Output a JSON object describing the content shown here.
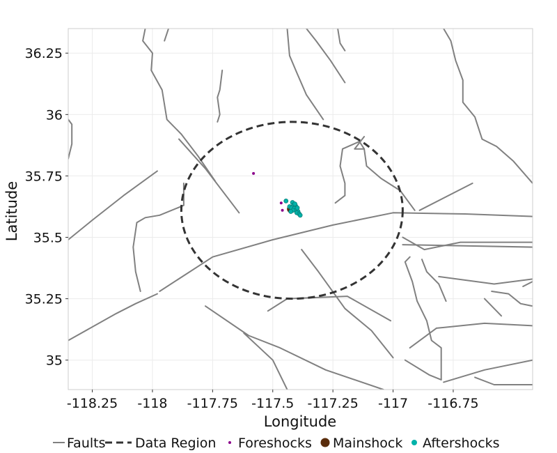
{
  "chart_data": {
    "type": "scatter",
    "xlabel": "Longitude",
    "ylabel": "Latitude",
    "xlim": [
      -118.35,
      -116.42
    ],
    "ylim": [
      34.88,
      36.35
    ],
    "x_ticks": [
      {
        "value": -118.25,
        "label": "-118.25"
      },
      {
        "value": -118.0,
        "label": "-118"
      },
      {
        "value": -117.75,
        "label": "-117.75"
      },
      {
        "value": -117.5,
        "label": "-117.5"
      },
      {
        "value": -117.25,
        "label": "-117.25"
      },
      {
        "value": -117.0,
        "label": "-117"
      },
      {
        "value": -116.75,
        "label": "-116.75"
      }
    ],
    "y_ticks": [
      {
        "value": 35.0,
        "label": "35"
      },
      {
        "value": 35.25,
        "label": "35.25"
      },
      {
        "value": 35.5,
        "label": "35.5"
      },
      {
        "value": 35.75,
        "label": "35.75"
      },
      {
        "value": 36.0,
        "label": "36"
      },
      {
        "value": 36.25,
        "label": "36.25"
      }
    ],
    "grid": true,
    "legend_position": "bottom",
    "legend": [
      {
        "key": "faults",
        "label": "Faults"
      },
      {
        "key": "region",
        "label": "Data Region"
      },
      {
        "key": "foreshocks",
        "label": "Foreshocks"
      },
      {
        "key": "mainshock",
        "label": "Mainshock"
      },
      {
        "key": "aftershocks",
        "label": "Aftershocks"
      }
    ],
    "colors": {
      "faults": "#808080",
      "region": "#333333",
      "foreshocks": "#8b008b",
      "mainshock": "#5a2d0c",
      "aftershocks": "#00b2a9",
      "grid": "#ebebeb",
      "border": "#cccccc"
    },
    "data_region": {
      "center": [
        -117.42,
        35.61
      ],
      "radius_lon": 0.46,
      "radius_lat": 0.36
    },
    "mainshock": {
      "lon": -117.425,
      "lat": 35.615
    },
    "foreshocks": [
      {
        "lon": -117.58,
        "lat": 35.76
      },
      {
        "lon": -117.465,
        "lat": 35.64
      },
      {
        "lon": -117.46,
        "lat": 35.61
      }
    ],
    "aftershocks": [
      {
        "lon": -117.445,
        "lat": 35.648
      },
      {
        "lon": -117.418,
        "lat": 35.642
      },
      {
        "lon": -117.413,
        "lat": 35.632
      },
      {
        "lon": -117.405,
        "lat": 35.628
      },
      {
        "lon": -117.43,
        "lat": 35.625
      },
      {
        "lon": -117.422,
        "lat": 35.62
      },
      {
        "lon": -117.41,
        "lat": 35.618
      },
      {
        "lon": -117.402,
        "lat": 35.612
      },
      {
        "lon": -117.416,
        "lat": 35.61
      },
      {
        "lon": -117.395,
        "lat": 35.605
      },
      {
        "lon": -117.4,
        "lat": 35.6
      },
      {
        "lon": -117.39,
        "lat": 35.595
      },
      {
        "lon": -117.386,
        "lat": 35.59
      },
      {
        "lon": -117.425,
        "lat": 35.605
      },
      {
        "lon": -117.408,
        "lat": 35.636
      },
      {
        "lon": -117.398,
        "lat": 35.62
      }
    ],
    "faults": [
      [
        [
          -118.35,
          35.82
        ],
        [
          -118.335,
          35.88
        ],
        [
          -118.335,
          35.96
        ],
        [
          -118.35,
          35.98
        ]
      ],
      [
        [
          -118.35,
          35.49
        ],
        [
          -118.25,
          35.57
        ],
        [
          -118.12,
          35.67
        ],
        [
          -117.98,
          35.77
        ]
      ],
      [
        [
          -118.35,
          35.08
        ],
        [
          -118.15,
          35.19
        ],
        [
          -118.07,
          35.23
        ],
        [
          -117.98,
          35.27
        ]
      ],
      [
        [
          -117.97,
          35.28
        ],
        [
          -117.75,
          35.42
        ],
        [
          -117.5,
          35.49
        ],
        [
          -117.25,
          35.55
        ],
        [
          -117.0,
          35.6
        ],
        [
          -116.7,
          35.595
        ],
        [
          -116.42,
          35.585
        ]
      ],
      [
        [
          -118.03,
          36.35
        ],
        [
          -118.04,
          36.3
        ],
        [
          -118.0,
          36.25
        ],
        [
          -118.005,
          36.18
        ],
        [
          -117.96,
          36.1
        ],
        [
          -117.94,
          35.98
        ],
        [
          -117.88,
          35.92
        ],
        [
          -117.81,
          35.83
        ],
        [
          -117.74,
          35.73
        ]
      ],
      [
        [
          -117.93,
          36.36
        ],
        [
          -117.95,
          36.3
        ]
      ],
      [
        [
          -117.89,
          35.9
        ],
        [
          -117.78,
          35.78
        ],
        [
          -117.64,
          35.6
        ]
      ],
      [
        [
          -118.05,
          35.28
        ],
        [
          -118.07,
          35.36
        ],
        [
          -118.08,
          35.46
        ],
        [
          -118.065,
          35.56
        ],
        [
          -118.03,
          35.58
        ],
        [
          -117.97,
          35.59
        ],
        [
          -117.87,
          35.63
        ],
        [
          -117.87,
          35.72
        ]
      ],
      [
        [
          -117.73,
          35.97
        ],
        [
          -117.72,
          36.0
        ],
        [
          -117.73,
          36.07
        ],
        [
          -117.72,
          36.1
        ],
        [
          -117.71,
          36.18
        ]
      ],
      [
        [
          -117.44,
          36.35
        ],
        [
          -117.43,
          36.24
        ],
        [
          -117.4,
          36.17
        ],
        [
          -117.36,
          36.08
        ],
        [
          -117.29,
          35.98
        ]
      ],
      [
        [
          -117.36,
          36.35
        ],
        [
          -117.32,
          36.3
        ],
        [
          -117.26,
          36.22
        ],
        [
          -117.2,
          36.13
        ]
      ],
      [
        [
          -117.23,
          36.35
        ],
        [
          -117.22,
          36.29
        ],
        [
          -117.2,
          36.26
        ]
      ],
      [
        [
          -117.24,
          35.64
        ],
        [
          -117.2,
          35.67
        ],
        [
          -117.2,
          35.72
        ],
        [
          -117.22,
          35.79
        ],
        [
          -117.21,
          35.86
        ],
        [
          -117.14,
          35.89
        ],
        [
          -117.12,
          35.86
        ],
        [
          -117.11,
          35.79
        ],
        [
          -117.05,
          35.74
        ],
        [
          -116.97,
          35.69
        ],
        [
          -116.91,
          35.61
        ]
      ],
      [
        [
          -117.12,
          35.91
        ],
        [
          -117.16,
          35.86
        ],
        [
          -117.12,
          35.86
        ]
      ],
      [
        [
          -116.79,
          36.35
        ],
        [
          -116.76,
          36.3
        ],
        [
          -116.74,
          36.22
        ],
        [
          -116.71,
          36.14
        ],
        [
          -116.71,
          36.05
        ],
        [
          -116.66,
          35.99
        ],
        [
          -116.63,
          35.9
        ],
        [
          -116.57,
          35.87
        ],
        [
          -116.5,
          35.81
        ],
        [
          -116.42,
          35.72
        ]
      ],
      [
        [
          -116.89,
          35.61
        ],
        [
          -116.67,
          35.72
        ]
      ],
      [
        [
          -117.01,
          35.16
        ],
        [
          -117.19,
          35.26
        ],
        [
          -117.44,
          35.25
        ],
        [
          -117.52,
          35.2
        ]
      ],
      [
        [
          -117.78,
          35.22
        ],
        [
          -117.6,
          35.1
        ],
        [
          -117.47,
          35.05
        ],
        [
          -117.28,
          34.96
        ],
        [
          -117.04,
          34.88
        ]
      ],
      [
        [
          -117.62,
          35.11
        ],
        [
          -117.5,
          35.0
        ],
        [
          -117.44,
          34.88
        ]
      ],
      [
        [
          -117.38,
          35.45
        ],
        [
          -117.31,
          35.36
        ],
        [
          -117.2,
          35.21
        ],
        [
          -117.09,
          35.12
        ],
        [
          -117.0,
          35.01
        ]
      ],
      [
        [
          -116.96,
          35.5
        ],
        [
          -116.87,
          35.45
        ],
        [
          -116.72,
          35.48
        ],
        [
          -116.42,
          35.48
        ]
      ],
      [
        [
          -116.96,
          35.47
        ],
        [
          -116.42,
          35.46
        ]
      ],
      [
        [
          -116.93,
          35.42
        ],
        [
          -116.95,
          35.4
        ],
        [
          -116.92,
          35.32
        ],
        [
          -116.9,
          35.24
        ],
        [
          -116.86,
          35.16
        ],
        [
          -116.84,
          35.08
        ],
        [
          -116.8,
          35.05
        ],
        [
          -116.8,
          34.92
        ]
      ],
      [
        [
          -116.88,
          35.41
        ],
        [
          -116.86,
          35.36
        ],
        [
          -116.81,
          35.31
        ],
        [
          -116.78,
          35.24
        ]
      ],
      [
        [
          -116.81,
          35.34
        ],
        [
          -116.58,
          35.31
        ],
        [
          -116.42,
          35.33
        ]
      ],
      [
        [
          -116.93,
          35.05
        ],
        [
          -116.82,
          35.13
        ],
        [
          -116.62,
          35.15
        ],
        [
          -116.42,
          35.14
        ]
      ],
      [
        [
          -116.59,
          35.28
        ],
        [
          -116.52,
          35.27
        ],
        [
          -116.47,
          35.23
        ],
        [
          -116.42,
          35.22
        ]
      ],
      [
        [
          -116.62,
          35.25
        ],
        [
          -116.55,
          35.18
        ]
      ],
      [
        [
          -116.95,
          35.0
        ],
        [
          -116.85,
          34.94
        ],
        [
          -116.8,
          34.92
        ]
      ],
      [
        [
          -116.79,
          34.91
        ],
        [
          -116.62,
          34.96
        ],
        [
          -116.42,
          35.0
        ]
      ],
      [
        [
          -116.66,
          34.93
        ],
        [
          -116.58,
          34.9
        ],
        [
          -116.42,
          34.9
        ]
      ],
      [
        [
          -116.42,
          35.32
        ],
        [
          -116.46,
          35.3
        ]
      ]
    ]
  }
}
